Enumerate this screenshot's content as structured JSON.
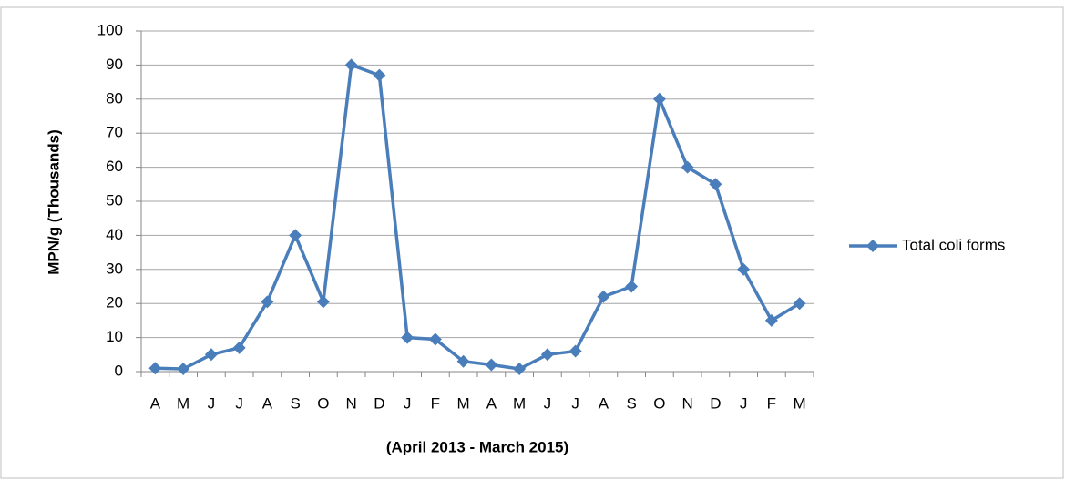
{
  "chart_data": {
    "type": "line",
    "y_label": "MPN/g (Thousands)",
    "x_label": "(April 2013 - March 2015)",
    "categories": [
      "A",
      "M",
      "J",
      "J",
      "A",
      "S",
      "O",
      "N",
      "D",
      "J",
      "F",
      "M",
      "A",
      "M",
      "J",
      "J",
      "A",
      "S",
      "O",
      "N",
      "D",
      "J",
      "F",
      "M"
    ],
    "series": [
      {
        "name": "Total coli forms",
        "color": "#4a7ebb",
        "values": [
          1,
          0.8,
          5,
          7,
          20.5,
          40,
          20.5,
          90,
          87,
          10,
          9.5,
          3,
          2,
          0.8,
          5,
          6,
          22,
          25,
          80,
          60,
          55,
          30,
          15,
          20
        ]
      }
    ],
    "ylim": [
      0,
      100
    ],
    "yticks": [
      0,
      10,
      20,
      30,
      40,
      50,
      60,
      70,
      80,
      90,
      100
    ],
    "grid": true,
    "legend": "right"
  }
}
